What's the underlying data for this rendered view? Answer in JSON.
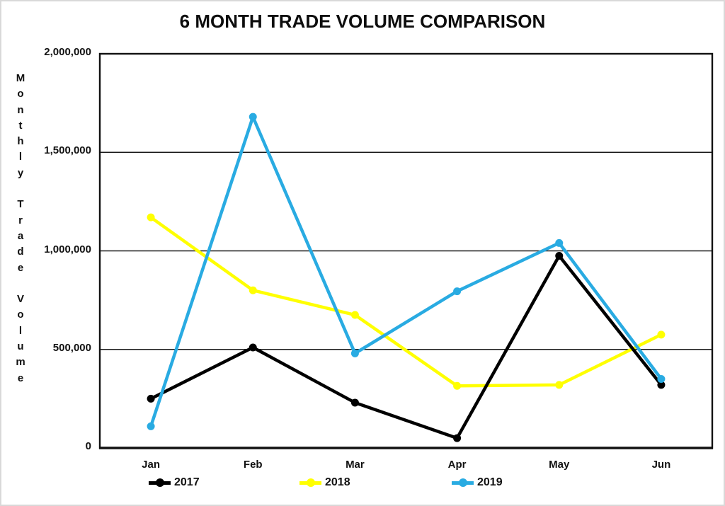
{
  "title": "6 MONTH TRADE VOLUME COMPARISON",
  "chart_data": {
    "type": "line",
    "categories": [
      "Jan",
      "Feb",
      "Mar",
      "Apr",
      "May",
      "Jun"
    ],
    "series": [
      {
        "name": "2017",
        "color": "#000000",
        "values": [
          250000,
          510000,
          230000,
          50000,
          975000,
          320000
        ]
      },
      {
        "name": "2018",
        "color": "#FFFF00",
        "values": [
          1170000,
          800000,
          675000,
          315000,
          320000,
          575000
        ]
      },
      {
        "name": "2019",
        "color": "#29ABE2",
        "values": [
          110000,
          1680000,
          480000,
          795000,
          1040000,
          350000
        ]
      }
    ],
    "xlabel": "",
    "ylabel": "Monthly Trade Volume",
    "ylim": [
      0,
      2000000
    ],
    "ytick_interval": 500000,
    "yticks": [
      "0",
      "500,000",
      "1,000,000",
      "1,500,000",
      "2,000,000"
    ],
    "grid": true,
    "grid_color": "#1a1a1a",
    "axis_color": "#111111",
    "legend_position": "bottom",
    "marker": "circle"
  }
}
